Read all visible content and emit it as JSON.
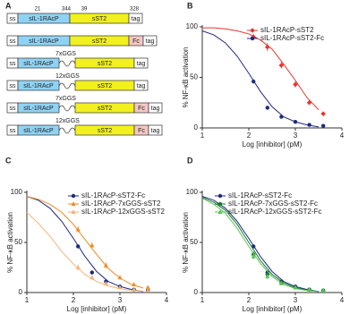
{
  "panel_a": {
    "label": "A",
    "numbers": [
      "21",
      "344",
      "39",
      "328"
    ],
    "constructs": [
      {
        "segments": [
          "ss",
          "sIL-1RAcP",
          "sST2",
          "tag"
        ]
      },
      {
        "segments": [
          "ss",
          "sIL-1RAcP",
          "sST2",
          "Fc",
          "tag"
        ]
      },
      {
        "segments": [
          "ss",
          "sIL-1RAcP",
          "sST2",
          "tag"
        ],
        "linker": "7xGGS"
      },
      {
        "segments": [
          "ss",
          "sIL-1RAcP",
          "sST2",
          "tag"
        ],
        "linker": "12xGGS"
      },
      {
        "segments": [
          "ss",
          "sIL-1RAcP",
          "sST2",
          "Fc",
          "tag"
        ],
        "linker": "7xGGS"
      },
      {
        "segments": [
          "ss",
          "sIL-1RAcP",
          "sST2",
          "Fc",
          "tag"
        ],
        "linker": "12xGGS"
      }
    ]
  },
  "chart_data": [
    {
      "type": "line",
      "panel": "B",
      "x_label": "Log [inhibitor] (pM)",
      "y_label": "% NF-κB activation",
      "xlim": [
        1,
        4
      ],
      "xticks": [
        1,
        2,
        3,
        4
      ],
      "ylim": [
        0,
        100
      ],
      "yticks": [
        0,
        50,
        100
      ],
      "x": [
        2.1,
        2.4,
        2.7,
        3.0,
        3.3,
        3.6
      ],
      "fit_x": [
        1,
        1.25,
        1.5,
        1.75,
        2,
        2.25,
        2.5,
        2.75,
        3,
        3.25,
        3.5
      ],
      "series": [
        {
          "name": "sIL-1RAcP-sST2",
          "color": "#e8342c",
          "marker": "diamond",
          "values": [
            90,
            80,
            62,
            43,
            25,
            14
          ],
          "errors": [
            3,
            4,
            3,
            3,
            2,
            2
          ],
          "fit_values": [
            99,
            99,
            98,
            96,
            93,
            87,
            78,
            63,
            47,
            30,
            18
          ]
        },
        {
          "name": "sIL-1RAcP-sST2-Fc",
          "color": "#1f2a80",
          "marker": "circle",
          "values": [
            46,
            20,
            11,
            6,
            3,
            2
          ],
          "errors": [
            2,
            2,
            1,
            1,
            1,
            1
          ],
          "fit_values": [
            96,
            92,
            84,
            71,
            54,
            36,
            21,
            11,
            6,
            3,
            1
          ]
        }
      ]
    },
    {
      "type": "line",
      "panel": "C",
      "x_label": "Log [inhibitor] (pM)",
      "y_label": "% NF-κB activation",
      "xlim": [
        1,
        4
      ],
      "xticks": [
        1,
        2,
        3,
        4
      ],
      "ylim": [
        0,
        100
      ],
      "yticks": [
        0,
        50,
        100
      ],
      "x": [
        2.1,
        2.4,
        2.7,
        3.0,
        3.3,
        3.6
      ],
      "fit_x": [
        1,
        1.25,
        1.5,
        1.75,
        2,
        2.25,
        2.5,
        2.75,
        3,
        3.25,
        3.5
      ],
      "series": [
        {
          "name": "sIL-1RAcP-sST2-Fc",
          "color": "#1f2a80",
          "marker": "circle",
          "values": [
            46,
            20,
            11,
            6,
            3,
            2
          ],
          "errors": [
            2,
            2,
            1,
            1,
            1,
            1
          ],
          "fit_values": [
            96,
            92,
            84,
            71,
            54,
            36,
            21,
            11,
            6,
            3,
            1
          ]
        },
        {
          "name": "sIL-1RAcP-7xGGS-sST2",
          "color": "#f08a24",
          "marker": "triangle",
          "values": [
            63,
            47,
            27,
            15,
            8,
            5
          ],
          "errors": [
            3,
            3,
            3,
            2,
            2,
            1
          ],
          "fit_values": [
            96,
            93,
            88,
            80,
            68,
            53,
            38,
            24,
            14.5,
            8,
            4.5
          ]
        },
        {
          "name": "sIL-1RAcP-12xGGS-sST2",
          "color": "#f6b27a",
          "marker": "triangle",
          "values": [
            25,
            15,
            9,
            5,
            3,
            2
          ],
          "errors": [
            3,
            2,
            2,
            1,
            1,
            1
          ],
          "fit_values": [
            80,
            69,
            56,
            41,
            28.5,
            18,
            11,
            6.6,
            3.8,
            2.2,
            1.3
          ]
        }
      ]
    },
    {
      "type": "line",
      "panel": "D",
      "x_label": "Log [inhibitor] (pM)",
      "y_label": "% NF-κB activation",
      "xlim": [
        1,
        4
      ],
      "xticks": [
        1,
        2,
        3,
        4
      ],
      "ylim": [
        0,
        100
      ],
      "yticks": [
        0,
        50,
        100
      ],
      "x": [
        2.1,
        2.4,
        2.7,
        3.0,
        3.3,
        3.6
      ],
      "fit_x": [
        1,
        1.25,
        1.5,
        1.75,
        2,
        2.25,
        2.5,
        2.75,
        3,
        3.25,
        3.5
      ],
      "series": [
        {
          "name": "sIL-1RAcP-sST2-Fc",
          "color": "#1f2a80",
          "marker": "circle",
          "values": [
            46,
            20,
            11,
            6,
            3,
            2
          ],
          "errors": [
            2,
            2,
            1,
            1,
            1,
            1
          ],
          "fit_values": [
            96,
            92,
            84,
            71,
            54,
            36,
            21,
            11,
            6,
            3,
            1
          ]
        },
        {
          "name": "sIL-1RAcP-7xGGS-sST2-Fc",
          "color": "#1a7a2e",
          "marker": "circle",
          "values": [
            38,
            18,
            10,
            5,
            3,
            2
          ],
          "errors": [
            3,
            2,
            1,
            1,
            1,
            1
          ],
          "fit_values": [
            95,
            90,
            82,
            68,
            50,
            32,
            18,
            9.6,
            4.8,
            2.3,
            1.1
          ]
        },
        {
          "name": "sIL-1RAcP-12xGGS-sST2-Fc",
          "color": "#5cc45a",
          "marker": "triangle",
          "values": [
            36,
            16,
            9,
            5,
            3,
            2
          ],
          "errors": [
            3,
            2,
            1,
            1,
            1,
            1
          ],
          "fit_values": [
            94,
            88,
            79,
            64,
            46,
            29,
            16,
            8,
            4,
            2,
            1
          ]
        }
      ]
    }
  ]
}
